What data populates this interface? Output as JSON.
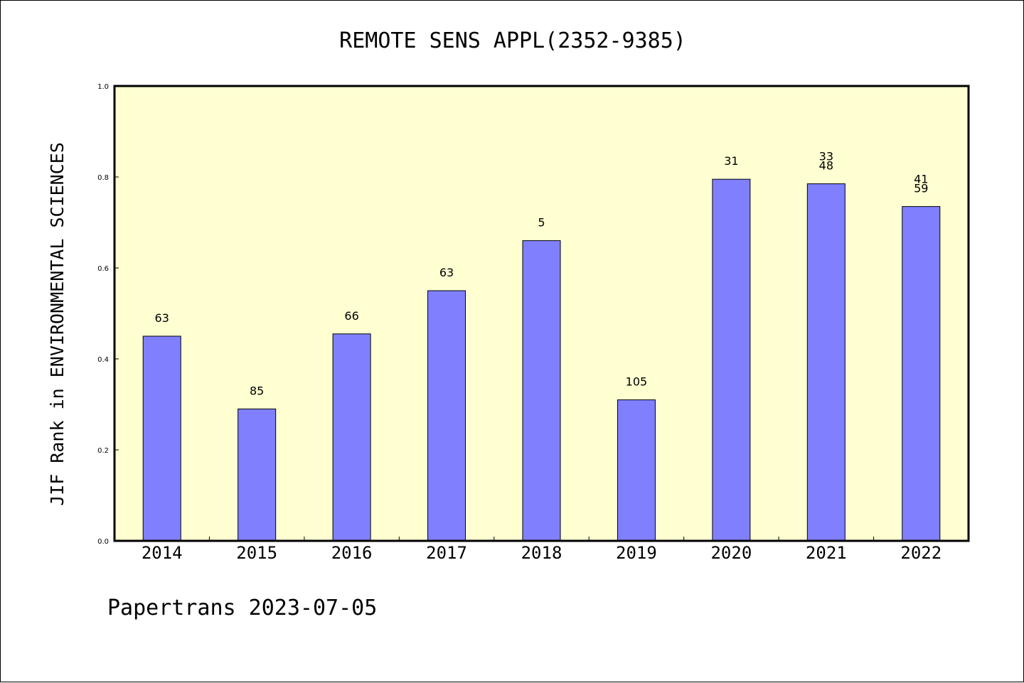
{
  "chart_data": {
    "type": "bar",
    "title": "REMOTE SENS APPL(2352-9385)",
    "ylabel": "JIF Rank in ENVIRONMENTAL SCIENCES",
    "xlabel": "",
    "categories": [
      "2014",
      "2015",
      "2016",
      "2017",
      "2018",
      "2019",
      "2020",
      "2021",
      "2022"
    ],
    "values": [
      0.45,
      0.29,
      0.455,
      0.55,
      0.66,
      0.31,
      0.795,
      0.785,
      0.735
    ],
    "data_labels": [
      [
        "63"
      ],
      [
        "85"
      ],
      [
        "66"
      ],
      [
        "63"
      ],
      [
        "5"
      ],
      [
        "105"
      ],
      [
        "31"
      ],
      [
        "33",
        "48"
      ],
      [
        "41",
        "59"
      ]
    ],
    "ylim": [
      0,
      1.0
    ],
    "yticks": [
      "0.0",
      "0.2",
      "0.4",
      "0.6",
      "0.8",
      "1.0"
    ],
    "grid": false,
    "legend": "none",
    "colors": {
      "bar": "#8080ff",
      "plot_background": "#ffffd2",
      "axis": "#000000"
    }
  },
  "footer": "Papertrans 2023-07-05"
}
